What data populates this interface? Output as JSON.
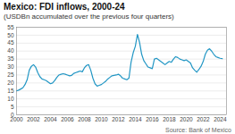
{
  "chart_data": {
    "type": "line",
    "title": "Mexico: FDI inflows, 2000-24",
    "subtitle": "(USDBn accumulated over the previous four quarters)",
    "source": "Source: Bank of Mexico",
    "color": "#2196c4",
    "grid": true,
    "xlim": [
      2000,
      2024.75
    ],
    "xticks": [
      2000,
      2002,
      2004,
      2006,
      2008,
      2010,
      2012,
      2014,
      2016,
      2018,
      2020,
      2022,
      2024
    ],
    "ylim": [
      0,
      55
    ],
    "yticks": [
      0,
      5,
      10,
      15,
      20,
      25,
      30,
      35,
      40,
      45,
      50,
      55
    ],
    "x": [
      2000,
      2000.25,
      2000.5,
      2000.75,
      2001,
      2001.25,
      2001.5,
      2001.75,
      2002,
      2002.25,
      2002.5,
      2002.75,
      2003,
      2003.25,
      2003.5,
      2003.75,
      2004,
      2004.25,
      2004.5,
      2004.75,
      2005,
      2005.25,
      2005.5,
      2005.75,
      2006,
      2006.25,
      2006.5,
      2006.75,
      2007,
      2007.25,
      2007.5,
      2007.75,
      2008,
      2008.25,
      2008.5,
      2008.75,
      2009,
      2009.25,
      2009.5,
      2009.75,
      2010,
      2010.25,
      2010.5,
      2010.75,
      2011,
      2011.25,
      2011.5,
      2011.75,
      2012,
      2012.25,
      2012.5,
      2012.75,
      2013,
      2013.25,
      2013.5,
      2013.75,
      2014,
      2014.25,
      2014.5,
      2014.75,
      2015,
      2015.25,
      2015.5,
      2015.75,
      2016,
      2016.25,
      2016.5,
      2016.75,
      2017,
      2017.25,
      2017.5,
      2017.75,
      2018,
      2018.25,
      2018.5,
      2018.75,
      2019,
      2019.25,
      2019.5,
      2019.75,
      2020,
      2020.25,
      2020.5,
      2020.75,
      2021,
      2021.25,
      2021.5,
      2021.75,
      2022,
      2022.25,
      2022.5,
      2022.75,
      2023,
      2023.25,
      2023.5,
      2023.75,
      2024,
      2024.25
    ],
    "values": [
      15.0,
      15.5,
      16.2,
      17.0,
      19.0,
      22.0,
      28.0,
      30.5,
      31.5,
      30.0,
      26.5,
      24.0,
      22.5,
      22.0,
      21.5,
      20.5,
      19.5,
      20.0,
      21.5,
      23.5,
      25.0,
      25.5,
      25.8,
      25.5,
      25.0,
      24.5,
      24.8,
      26.0,
      26.5,
      27.0,
      27.5,
      27.0,
      29.5,
      31.0,
      31.5,
      28.0,
      23.0,
      19.5,
      18.0,
      18.5,
      19.0,
      20.0,
      21.0,
      22.5,
      23.5,
      24.5,
      24.8,
      25.0,
      25.5,
      24.5,
      23.0,
      22.5,
      22.0,
      23.0,
      33.0,
      39.0,
      43.0,
      50.5,
      45.5,
      38.0,
      34.0,
      32.0,
      30.0,
      29.5,
      29.0,
      35.0,
      35.5,
      34.5,
      33.5,
      32.5,
      31.5,
      32.5,
      33.5,
      33.0,
      35.0,
      36.5,
      36.0,
      35.0,
      34.5,
      34.0,
      34.5,
      33.5,
      32.5,
      29.5,
      28.0,
      26.8,
      28.5,
      30.5,
      33.5,
      38.0,
      40.5,
      41.5,
      40.0,
      38.0,
      36.5,
      36.0,
      35.5,
      35.3
    ]
  }
}
